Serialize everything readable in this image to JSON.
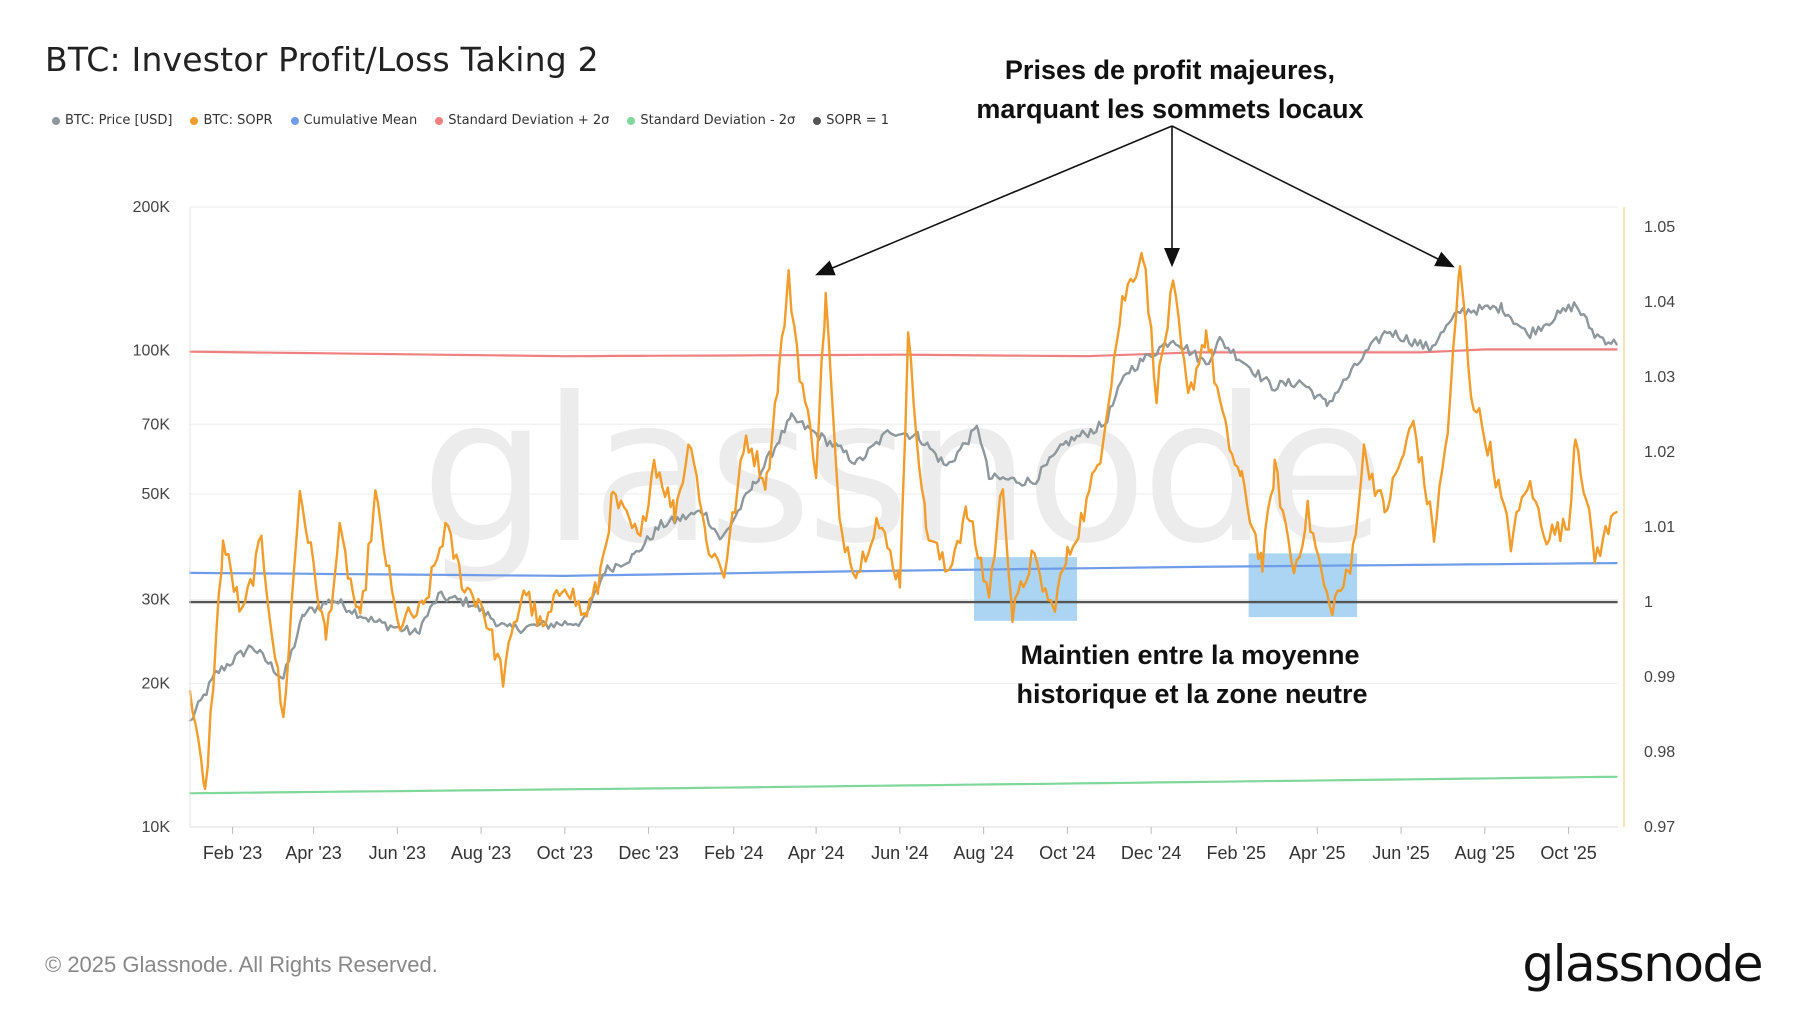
{
  "title": "BTC: Investor Profit/Loss Taking 2",
  "legend": [
    {
      "label": "BTC: Price [USD]",
      "color": "#8e979b"
    },
    {
      "label": "BTC: SOPR",
      "color": "#f29d2b"
    },
    {
      "label": "Cumulative Mean",
      "color": "#6f9ce8"
    },
    {
      "label": "Standard Deviation + 2σ",
      "color": "#f08080"
    },
    {
      "label": "Standard Deviation - 2σ",
      "color": "#7fd79a"
    },
    {
      "label": "SOPR = 1",
      "color": "#555555"
    }
  ],
  "annotations": {
    "top_line1": "Prises de profit majeures,",
    "top_line2": "marquant les sommets locaux",
    "bottom_line1": "Maintien entre la moyenne",
    "bottom_line2": "historique et la zone neutre"
  },
  "watermark": "glassnode",
  "copyright": "© 2025 Glassnode. All Rights Reserved.",
  "logo": "glassnode",
  "chart_data": {
    "type": "line",
    "title": "BTC: Investor Profit/Loss Taking 2",
    "x_range": [
      "2023-01-01",
      "2025-11-06"
    ],
    "x_ticks": [
      {
        "date": "2023-02-01",
        "label": "Feb '23"
      },
      {
        "date": "2023-04-01",
        "label": "Apr '23"
      },
      {
        "date": "2023-06-01",
        "label": "Jun '23"
      },
      {
        "date": "2023-08-01",
        "label": "Aug '23"
      },
      {
        "date": "2023-10-01",
        "label": "Oct '23"
      },
      {
        "date": "2023-12-01",
        "label": "Dec '23"
      },
      {
        "date": "2024-02-01",
        "label": "Feb '24"
      },
      {
        "date": "2024-04-01",
        "label": "Apr '24"
      },
      {
        "date": "2024-06-01",
        "label": "Jun '24"
      },
      {
        "date": "2024-08-01",
        "label": "Aug '24"
      },
      {
        "date": "2024-10-01",
        "label": "Oct '24"
      },
      {
        "date": "2024-12-01",
        "label": "Dec '24"
      },
      {
        "date": "2025-02-01",
        "label": "Feb '25"
      },
      {
        "date": "2025-04-01",
        "label": "Apr '25"
      },
      {
        "date": "2025-06-01",
        "label": "Jun '25"
      },
      {
        "date": "2025-08-01",
        "label": "Aug '25"
      },
      {
        "date": "2025-10-01",
        "label": "Oct '25"
      }
    ],
    "y_left": {
      "scale": "log",
      "range": [
        10000,
        200000
      ],
      "ticks": [
        {
          "v": 10000,
          "label": "10K"
        },
        {
          "v": 20000,
          "label": "20K"
        },
        {
          "v": 30000,
          "label": "30K"
        },
        {
          "v": 50000,
          "label": "50K"
        },
        {
          "v": 70000,
          "label": "70K"
        },
        {
          "v": 100000,
          "label": "100K"
        },
        {
          "v": 200000,
          "label": "200K"
        }
      ]
    },
    "y_right": {
      "scale": "linear",
      "range": [
        0.97,
        1.0527
      ],
      "ticks": [
        {
          "v": 0.97,
          "label": "0.97"
        },
        {
          "v": 0.98,
          "label": "0.98"
        },
        {
          "v": 0.99,
          "label": "0.99"
        },
        {
          "v": 1.0,
          "label": "1"
        },
        {
          "v": 1.01,
          "label": "1.01"
        },
        {
          "v": 1.02,
          "label": "1.02"
        },
        {
          "v": 1.03,
          "label": "1.03"
        },
        {
          "v": 1.04,
          "label": "1.04"
        },
        {
          "v": 1.05,
          "label": "1.05"
        }
      ]
    },
    "series": [
      {
        "name": "BTC: Price [USD]",
        "axis": "left",
        "color": "#8e979b",
        "points": [
          [
            "2023-01-01",
            16600
          ],
          [
            "2023-01-20",
            21000
          ],
          [
            "2023-02-15",
            24000
          ],
          [
            "2023-03-10",
            20500
          ],
          [
            "2023-03-25",
            28000
          ],
          [
            "2023-04-15",
            30000
          ],
          [
            "2023-05-15",
            27000
          ],
          [
            "2023-06-15",
            25500
          ],
          [
            "2023-07-01",
            30500
          ],
          [
            "2023-07-25",
            29500
          ],
          [
            "2023-08-20",
            26000
          ],
          [
            "2023-09-15",
            26500
          ],
          [
            "2023-10-15",
            27000
          ],
          [
            "2023-10-30",
            34500
          ],
          [
            "2023-11-20",
            37000
          ],
          [
            "2023-12-10",
            43000
          ],
          [
            "2024-01-10",
            46000
          ],
          [
            "2024-01-23",
            40000
          ],
          [
            "2024-02-15",
            52000
          ],
          [
            "2024-03-05",
            65000
          ],
          [
            "2024-03-14",
            72000
          ],
          [
            "2024-04-15",
            63000
          ],
          [
            "2024-05-01",
            58000
          ],
          [
            "2024-05-25",
            68000
          ],
          [
            "2024-06-15",
            66000
          ],
          [
            "2024-07-05",
            57000
          ],
          [
            "2024-07-28",
            69000
          ],
          [
            "2024-08-05",
            54000
          ],
          [
            "2024-09-06",
            53000
          ],
          [
            "2024-09-30",
            64000
          ],
          [
            "2024-10-28",
            70000
          ],
          [
            "2024-11-13",
            90000
          ],
          [
            "2024-12-17",
            106000
          ],
          [
            "2025-01-10",
            94000
          ],
          [
            "2025-01-20",
            105000
          ],
          [
            "2025-02-27",
            84000
          ],
          [
            "2025-03-20",
            86000
          ],
          [
            "2025-04-08",
            77000
          ],
          [
            "2025-05-08",
            100000
          ],
          [
            "2025-05-22",
            110000
          ],
          [
            "2025-06-22",
            101000
          ],
          [
            "2025-07-14",
            121000
          ],
          [
            "2025-08-14",
            123000
          ],
          [
            "2025-09-01",
            108000
          ],
          [
            "2025-10-06",
            125000
          ],
          [
            "2025-10-20",
            108000
          ],
          [
            "2025-11-05",
            103000
          ]
        ]
      },
      {
        "name": "BTC: SOPR",
        "axis": "right",
        "color": "#f29d2b",
        "points": [
          [
            "2023-01-01",
            0.989
          ],
          [
            "2023-01-12",
            0.974
          ],
          [
            "2023-01-25",
            1.008
          ],
          [
            "2023-02-08",
            0.998
          ],
          [
            "2023-02-22",
            1.008
          ],
          [
            "2023-03-10",
            0.984
          ],
          [
            "2023-03-22",
            1.015
          ],
          [
            "2023-04-10",
            0.995
          ],
          [
            "2023-04-20",
            1.009
          ],
          [
            "2023-05-05",
            0.997
          ],
          [
            "2023-05-16",
            1.014
          ],
          [
            "2023-06-01",
            0.997
          ],
          [
            "2023-06-20",
            0.999
          ],
          [
            "2023-07-06",
            1.01
          ],
          [
            "2023-07-20",
            1.002
          ],
          [
            "2023-08-01",
            1.0
          ],
          [
            "2023-08-17",
            0.99
          ],
          [
            "2023-09-01",
            1.002
          ],
          [
            "2023-09-15",
            0.996
          ],
          [
            "2023-10-01",
            1.003
          ],
          [
            "2023-10-15",
            0.998
          ],
          [
            "2023-10-25",
            1.002
          ],
          [
            "2023-11-05",
            1.014
          ],
          [
            "2023-11-25",
            1.008
          ],
          [
            "2023-12-05",
            1.019
          ],
          [
            "2023-12-20",
            1.012
          ],
          [
            "2024-01-01",
            1.022
          ],
          [
            "2024-01-12",
            1.008
          ],
          [
            "2024-01-25",
            1.004
          ],
          [
            "2024-02-10",
            1.022
          ],
          [
            "2024-02-25",
            1.016
          ],
          [
            "2024-03-05",
            1.031
          ],
          [
            "2024-03-12",
            1.043
          ],
          [
            "2024-03-20",
            1.031
          ],
          [
            "2024-04-01",
            1.018
          ],
          [
            "2024-04-08",
            1.041
          ],
          [
            "2024-04-18",
            1.01
          ],
          [
            "2024-05-01",
            1.004
          ],
          [
            "2024-05-15",
            1.011
          ],
          [
            "2024-06-01",
            1.003
          ],
          [
            "2024-06-07",
            1.035
          ],
          [
            "2024-06-20",
            1.01
          ],
          [
            "2024-07-05",
            1.004
          ],
          [
            "2024-07-20",
            1.012
          ],
          [
            "2024-08-05",
            1.001
          ],
          [
            "2024-08-15",
            1.016
          ],
          [
            "2024-08-22",
            0.998
          ],
          [
            "2024-09-05",
            1.006
          ],
          [
            "2024-09-20",
            0.999
          ],
          [
            "2024-10-01",
            1.006
          ],
          [
            "2024-10-15",
            1.013
          ],
          [
            "2024-10-25",
            1.02
          ],
          [
            "2024-11-10",
            1.04
          ],
          [
            "2024-11-25",
            1.047
          ],
          [
            "2024-12-05",
            1.028
          ],
          [
            "2024-12-17",
            1.042
          ],
          [
            "2024-12-28",
            1.027
          ],
          [
            "2025-01-10",
            1.036
          ],
          [
            "2025-01-25",
            1.022
          ],
          [
            "2025-02-05",
            1.016
          ],
          [
            "2025-02-20",
            1.005
          ],
          [
            "2025-03-01",
            1.018
          ],
          [
            "2025-03-15",
            1.004
          ],
          [
            "2025-03-25",
            1.012
          ],
          [
            "2025-04-10",
            0.999
          ],
          [
            "2025-04-25",
            1.004
          ],
          [
            "2025-05-05",
            1.02
          ],
          [
            "2025-05-20",
            1.012
          ],
          [
            "2025-06-10",
            1.024
          ],
          [
            "2025-06-25",
            1.009
          ],
          [
            "2025-07-05",
            1.023
          ],
          [
            "2025-07-14",
            1.045
          ],
          [
            "2025-07-22",
            1.028
          ],
          [
            "2025-08-05",
            1.02
          ],
          [
            "2025-08-20",
            1.008
          ],
          [
            "2025-09-01",
            1.016
          ],
          [
            "2025-09-15",
            1.009
          ],
          [
            "2025-10-01",
            1.01
          ],
          [
            "2025-10-06",
            1.023
          ],
          [
            "2025-10-20",
            1.006
          ],
          [
            "2025-11-05",
            1.012
          ]
        ]
      },
      {
        "name": "Cumulative Mean",
        "axis": "right",
        "color": "#6f9ce8",
        "points": [
          [
            "2023-01-01",
            1.0039
          ],
          [
            "2023-10-01",
            1.0035
          ],
          [
            "2024-06-01",
            1.0042
          ],
          [
            "2025-01-01",
            1.0047
          ],
          [
            "2025-11-05",
            1.0052
          ]
        ]
      },
      {
        "name": "Standard Deviation + 2σ",
        "axis": "right",
        "color": "#f08080",
        "points": [
          [
            "2023-01-01",
            1.0334
          ],
          [
            "2023-10-01",
            1.0328
          ],
          [
            "2024-06-01",
            1.033
          ],
          [
            "2024-10-15",
            1.0328
          ],
          [
            "2025-01-01",
            1.0333
          ],
          [
            "2025-06-15",
            1.0333
          ],
          [
            "2025-08-01",
            1.0337
          ],
          [
            "2025-11-05",
            1.0337
          ]
        ]
      },
      {
        "name": "Standard Deviation - 2σ",
        "axis": "right",
        "color": "#7fd79a",
        "points": [
          [
            "2023-01-01",
            0.9745
          ],
          [
            "2024-01-01",
            0.9752
          ],
          [
            "2025-01-01",
            0.976
          ],
          [
            "2025-11-05",
            0.9767
          ]
        ]
      },
      {
        "name": "SOPR = 1",
        "axis": "right",
        "color": "#555555",
        "points": [
          [
            "2023-01-01",
            1.0
          ],
          [
            "2025-11-05",
            1.0
          ]
        ]
      }
    ],
    "highlight_ranges": [
      {
        "start": "2024-07-25",
        "end": "2024-10-08",
        "ymin": 0.9975,
        "ymax": 1.006
      },
      {
        "start": "2025-02-10",
        "end": "2025-04-30",
        "ymin": 0.998,
        "ymax": 1.0065
      }
    ]
  }
}
